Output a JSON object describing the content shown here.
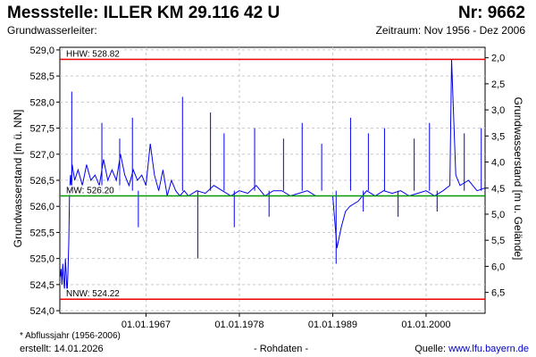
{
  "header": {
    "title": "Messstelle: ILLER KM 29.116 42 U",
    "number": "Nr: 9662",
    "subtitle": "Grundwasserleiter:",
    "period": "Zeitraum: Nov 1956 - Dez 2006"
  },
  "footer": {
    "footnote": "* Abflussjahr (1956-2006)",
    "created": "erstellt:  14.01.2026",
    "raw": "- Rohdaten -",
    "source_label": "Quelle: ",
    "source_url": "www.lfu.bayern.de"
  },
  "colors": {
    "series": "#0000ee",
    "limit": "#ee0000",
    "mean": "#009900",
    "grid": "#c8c8c8"
  },
  "chart_data": {
    "type": "line",
    "ylabel": "Grundwasserstand [m ü. NN]",
    "ylabel_right": "Grundwasserstand [m u. Gelände]",
    "ylim": [
      523.95,
      529.05
    ],
    "y_ticks": [
      524.0,
      524.5,
      525.0,
      525.5,
      526.0,
      526.5,
      527.0,
      527.5,
      528.0,
      528.5,
      529.0
    ],
    "y_tick_labels": [
      "524,0",
      "524,5",
      "525,0",
      "525,5",
      "526,0",
      "526,5",
      "527,0",
      "527,5",
      "528,0",
      "528,5",
      "529,0"
    ],
    "y_right_ticks": [
      2.0,
      2.5,
      3.0,
      3.5,
      4.0,
      4.5,
      5.0,
      5.5,
      6.0,
      6.5
    ],
    "y_right_tick_labels": [
      "2,0",
      "2,5",
      "3,0",
      "3,5",
      "4,0",
      "4,5",
      "5,0",
      "5,5",
      "6,0",
      "6,5"
    ],
    "ground_level": 530.85,
    "xlim": [
      1956.85,
      2006.95
    ],
    "x_ticks": [
      1967.0,
      1978.0,
      1989.0,
      2000.0
    ],
    "x_tick_labels": [
      "01.01.1967",
      "01.01.1978",
      "01.01.1989",
      "01.01.2000"
    ],
    "grid": true,
    "reference_lines": [
      {
        "name": "HHW",
        "label": "HHW: 528.82",
        "value": 528.82,
        "color": "#ee0000"
      },
      {
        "name": "MW",
        "label": "MW: 526.20",
        "value": 526.2,
        "color": "#009900"
      },
      {
        "name": "NNW",
        "label": "NNW: 524.22",
        "value": 524.22,
        "color": "#ee0000"
      }
    ],
    "series": [
      {
        "x": [
          1956.9,
          1957.0,
          1957.1,
          1957.2,
          1957.3,
          1957.4,
          1957.5,
          1957.6,
          1957.7,
          1957.8,
          1957.9,
          1958.0,
          1958.1,
          1958.2,
          1958.3,
          1958.6,
          1959.0,
          1959.5,
          1960.0,
          1960.5,
          1961.0,
          1961.5,
          1962.0,
          1962.5,
          1963.0,
          1963.5,
          1964.0,
          1964.5,
          1965.0,
          1965.5,
          1966.0,
          1966.5,
          1967.0,
          1967.5,
          1968.0,
          1968.5,
          1969.0,
          1969.5,
          1970.0,
          1970.5,
          1971.0,
          1971.5,
          1972.0,
          1973.0,
          1974.0,
          1975.0,
          1976.0,
          1977.0,
          1978.0,
          1979.0,
          1980.0,
          1981.0,
          1982.0,
          1983.0,
          1984.0,
          1985.0,
          1986.0,
          1987.0,
          1988.0,
          1989.0,
          1989.5,
          1990.0,
          1990.5,
          1991.0,
          1992.0,
          1993.0,
          1994.0,
          1995.0,
          1996.0,
          1997.0,
          1998.0,
          1999.0,
          2000.0,
          2001.0,
          2002.0,
          2002.8,
          2003.0,
          2003.5,
          2004.0,
          2005.0,
          2006.0,
          2006.9
        ],
        "y": [
          524.65,
          524.8,
          524.5,
          524.9,
          524.6,
          524.4,
          525.0,
          524.7,
          524.3,
          524.7,
          525.3,
          526.3,
          526.6,
          526.4,
          526.8,
          526.5,
          526.7,
          526.4,
          526.8,
          526.5,
          526.6,
          526.4,
          526.9,
          526.5,
          526.7,
          526.5,
          527.0,
          526.6,
          526.4,
          526.7,
          526.5,
          526.6,
          526.4,
          527.2,
          526.6,
          526.3,
          526.7,
          526.2,
          526.5,
          526.3,
          526.2,
          526.3,
          526.2,
          526.3,
          526.25,
          526.4,
          526.3,
          526.2,
          526.3,
          526.25,
          526.4,
          526.2,
          526.3,
          526.3,
          526.2,
          526.25,
          526.3,
          526.2,
          526.2,
          526.2,
          525.2,
          525.6,
          525.9,
          526.0,
          526.1,
          526.3,
          526.2,
          526.3,
          526.25,
          526.3,
          526.2,
          526.25,
          526.3,
          526.2,
          526.3,
          526.4,
          528.82,
          526.6,
          526.4,
          526.5,
          526.3,
          526.35
        ]
      }
    ],
    "spikes": [
      {
        "x": 1958.25,
        "y": 528.2
      },
      {
        "x": 1961.8,
        "y": 527.6
      },
      {
        "x": 1963.9,
        "y": 527.3
      },
      {
        "x": 1965.4,
        "y": 527.7
      },
      {
        "x": 1966.1,
        "y": 525.6
      },
      {
        "x": 1971.3,
        "y": 528.1
      },
      {
        "x": 1973.1,
        "y": 525.0
      },
      {
        "x": 1974.6,
        "y": 527.8
      },
      {
        "x": 1976.2,
        "y": 527.4
      },
      {
        "x": 1977.4,
        "y": 525.6
      },
      {
        "x": 1979.8,
        "y": 527.5
      },
      {
        "x": 1981.5,
        "y": 525.8
      },
      {
        "x": 1983.2,
        "y": 527.3
      },
      {
        "x": 1985.4,
        "y": 527.6
      },
      {
        "x": 1987.7,
        "y": 527.2
      },
      {
        "x": 1989.4,
        "y": 524.9
      },
      {
        "x": 1991.1,
        "y": 527.7
      },
      {
        "x": 1992.6,
        "y": 525.9
      },
      {
        "x": 1993.2,
        "y": 527.4
      },
      {
        "x": 1995.1,
        "y": 527.5
      },
      {
        "x": 1996.7,
        "y": 525.8
      },
      {
        "x": 1998.6,
        "y": 527.3
      },
      {
        "x": 2000.4,
        "y": 527.6
      },
      {
        "x": 2001.3,
        "y": 525.9
      },
      {
        "x": 2004.5,
        "y": 527.4
      },
      {
        "x": 2006.5,
        "y": 527.5
      }
    ]
  }
}
